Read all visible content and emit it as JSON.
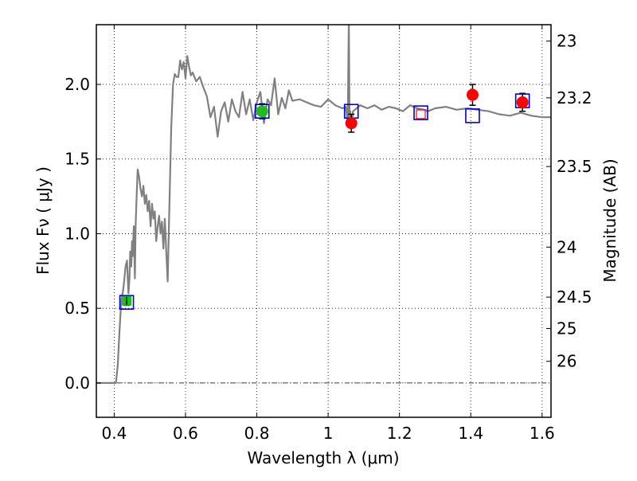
{
  "chart_data": {
    "type": "scatter",
    "xlabel": "Wavelength  λ (μm)",
    "ylabel": "Flux  Fν  ( μJy )",
    "ylabel_right": "Magnitude (AB)",
    "xlim": [
      0.35,
      1.625
    ],
    "ylim": [
      -0.23,
      2.4
    ],
    "grid": true,
    "x_ticks": [
      0.4,
      0.6,
      0.8,
      1.0,
      1.2,
      1.4,
      1.6
    ],
    "x_tick_labels": [
      "0.4",
      "0.6",
      "0.8",
      "1",
      "1.2",
      "1.4",
      "1.6"
    ],
    "y_ticks": [
      0.0,
      0.5,
      1.0,
      1.5,
      2.0
    ],
    "y_tick_labels": [
      "0.0",
      "0.5",
      "1.0",
      "1.5",
      "2.0"
    ],
    "right_ticks": [
      {
        "label": "23",
        "flux": 2.29
      },
      {
        "label": "23.2",
        "flux": 1.91
      },
      {
        "label": "23.5",
        "flux": 1.45
      },
      {
        "label": "24",
        "flux": 0.91
      },
      {
        "label": "24.5",
        "flux": 0.575
      },
      {
        "label": "25",
        "flux": 0.365
      },
      {
        "label": "26",
        "flux": 0.145
      }
    ],
    "colors": {
      "model": "#808080",
      "model_points": "#0000dd",
      "measured": "#ff0000",
      "ground": "#22bb22",
      "open_point": "#ff0000",
      "errorbar": "#000000"
    },
    "series": [
      {
        "type": "line",
        "x": [
          0.35,
          0.405,
          0.41,
          0.415,
          0.42,
          0.425,
          0.428,
          0.432,
          0.436,
          0.44,
          0.443,
          0.445,
          0.448,
          0.45,
          0.452,
          0.455,
          0.458,
          0.46,
          0.463,
          0.466,
          0.47,
          0.474,
          0.478,
          0.482,
          0.486,
          0.49,
          0.494,
          0.498,
          0.502,
          0.506,
          0.51,
          0.514,
          0.518,
          0.522,
          0.526,
          0.53,
          0.534,
          0.538,
          0.542,
          0.546,
          0.55,
          0.552,
          0.555,
          0.56,
          0.565,
          0.57,
          0.575,
          0.58,
          0.585,
          0.59,
          0.595,
          0.6,
          0.605,
          0.61,
          0.615,
          0.62,
          0.63,
          0.64,
          0.65,
          0.66,
          0.67,
          0.68,
          0.69,
          0.7,
          0.71,
          0.72,
          0.73,
          0.74,
          0.75,
          0.76,
          0.77,
          0.78,
          0.79,
          0.8,
          0.81,
          0.82,
          0.83,
          0.84,
          0.85,
          0.86,
          0.87,
          0.88,
          0.89,
          0.9,
          0.92,
          0.94,
          0.96,
          0.98,
          1.0,
          1.02,
          1.04,
          1.05,
          1.055,
          1.058,
          1.06,
          1.062,
          1.065,
          1.07,
          1.09,
          1.11,
          1.13,
          1.15,
          1.17,
          1.19,
          1.21,
          1.23,
          1.25,
          1.27,
          1.28,
          1.3,
          1.33,
          1.36,
          1.39,
          1.42,
          1.45,
          1.48,
          1.51,
          1.54,
          1.57,
          1.6,
          1.625
        ],
        "y": [
          0.0,
          0.0,
          0.12,
          0.35,
          0.55,
          0.62,
          0.68,
          0.78,
          0.82,
          0.6,
          0.7,
          0.88,
          0.78,
          0.95,
          0.85,
          1.05,
          0.7,
          1.05,
          1.25,
          1.43,
          1.38,
          1.3,
          1.25,
          1.32,
          1.2,
          1.26,
          1.15,
          1.22,
          1.05,
          1.2,
          1.1,
          1.15,
          0.95,
          1.05,
          1.12,
          1.0,
          1.08,
          0.9,
          1.1,
          0.88,
          0.68,
          0.9,
          1.2,
          1.7,
          2.0,
          2.07,
          2.05,
          2.05,
          2.16,
          2.1,
          2.15,
          2.04,
          2.19,
          2.12,
          2.06,
          2.08,
          2.02,
          2.05,
          1.98,
          1.92,
          1.78,
          1.85,
          1.65,
          1.82,
          1.88,
          1.75,
          1.9,
          1.82,
          1.78,
          1.95,
          1.8,
          1.9,
          1.76,
          1.88,
          1.95,
          1.74,
          1.9,
          1.86,
          2.04,
          1.8,
          1.91,
          1.84,
          1.96,
          1.89,
          1.9,
          1.88,
          1.86,
          1.85,
          1.9,
          1.86,
          1.84,
          1.85,
          1.72,
          2.45,
          1.75,
          1.82,
          1.7,
          1.82,
          1.86,
          1.84,
          1.86,
          1.83,
          1.85,
          1.84,
          1.82,
          1.86,
          1.84,
          1.83,
          1.82,
          1.84,
          1.85,
          1.83,
          1.84,
          1.83,
          1.82,
          1.8,
          1.79,
          1.81,
          1.79,
          1.78,
          1.78
        ]
      },
      {
        "type": "points",
        "marker": "open-square",
        "x": [
          0.435,
          0.815,
          1.065,
          1.26,
          1.405,
          1.545
        ],
        "y": [
          0.54,
          1.82,
          1.82,
          1.81,
          1.79,
          1.89
        ]
      },
      {
        "type": "points",
        "marker": "filled-circle",
        "x": [
          1.065,
          1.405,
          1.545
        ],
        "y": [
          1.74,
          1.93,
          1.88
        ],
        "yerr": [
          0.06,
          0.07,
          0.06
        ]
      },
      {
        "type": "points",
        "marker": "filled-circle",
        "x": [
          0.435,
          0.815
        ],
        "y": [
          0.55,
          1.82
        ],
        "yerr": [
          0.03,
          0.05
        ]
      },
      {
        "type": "points",
        "marker": "small-open-square",
        "x": [
          1.26
        ],
        "y": [
          1.8
        ]
      }
    ]
  }
}
